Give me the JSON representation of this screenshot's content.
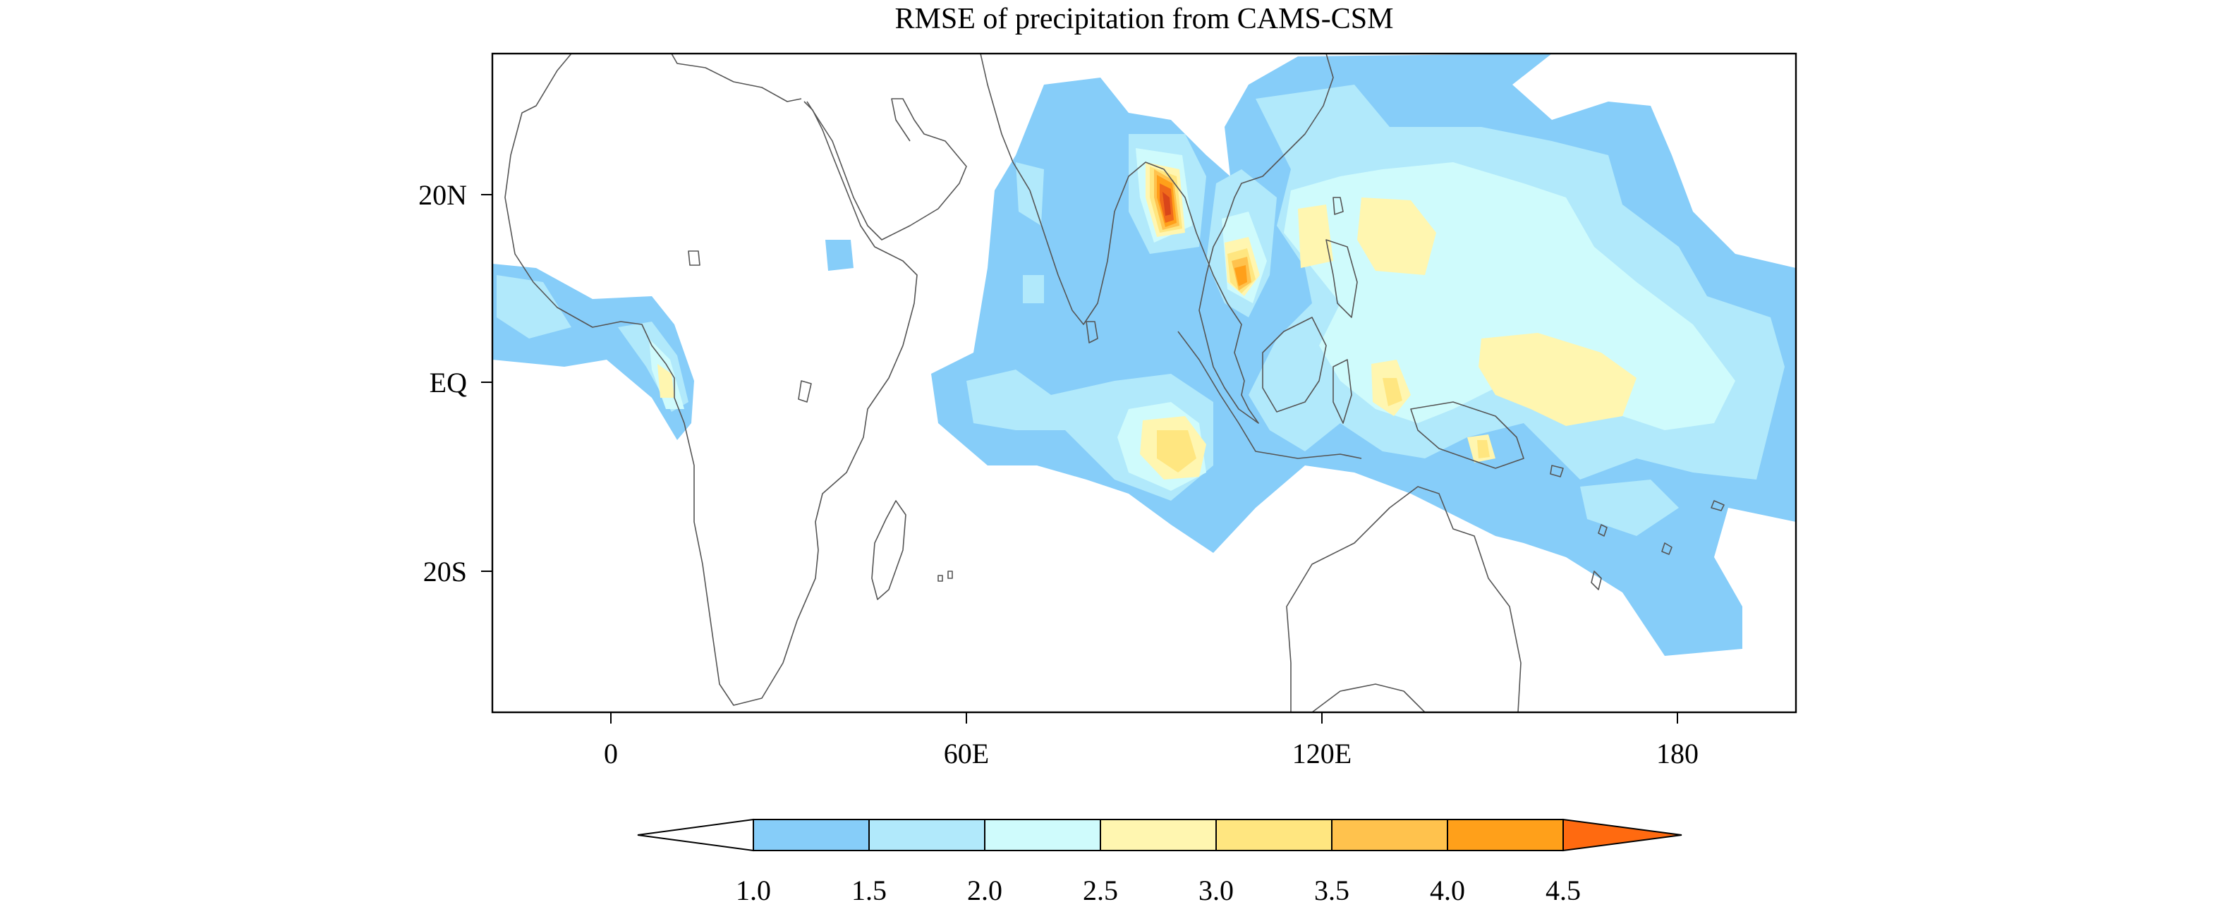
{
  "map": {
    "title": "RMSE of precipitation from CAMS-CSM",
    "lon_ticks": [
      "0",
      "60E",
      "120E",
      "180"
    ],
    "lat_ticks": [
      "20N",
      "EQ",
      "20S"
    ],
    "colorbar": {
      "labels": [
        "1.0",
        "1.5",
        "2.0",
        "2.5",
        "3.0",
        "3.5",
        "4.0",
        "4.5"
      ],
      "colors": [
        "#ffffff",
        "#86cdf9",
        "#b1e9fb",
        "#cffbfc",
        "#fff6b0",
        "#ffe680",
        "#ffc24d",
        "#ffa01a",
        "#ff6a10"
      ]
    },
    "levels": {
      "c1": "#86cdf9",
      "c2": "#b1e9fb",
      "c3": "#cffbfc",
      "c4": "#fff6b0",
      "c5": "#ffe680",
      "c6": "#ffc24d",
      "c7": "#ffa01a",
      "c8": "#f06a1a",
      "c9": "#d9461a"
    }
  }
}
